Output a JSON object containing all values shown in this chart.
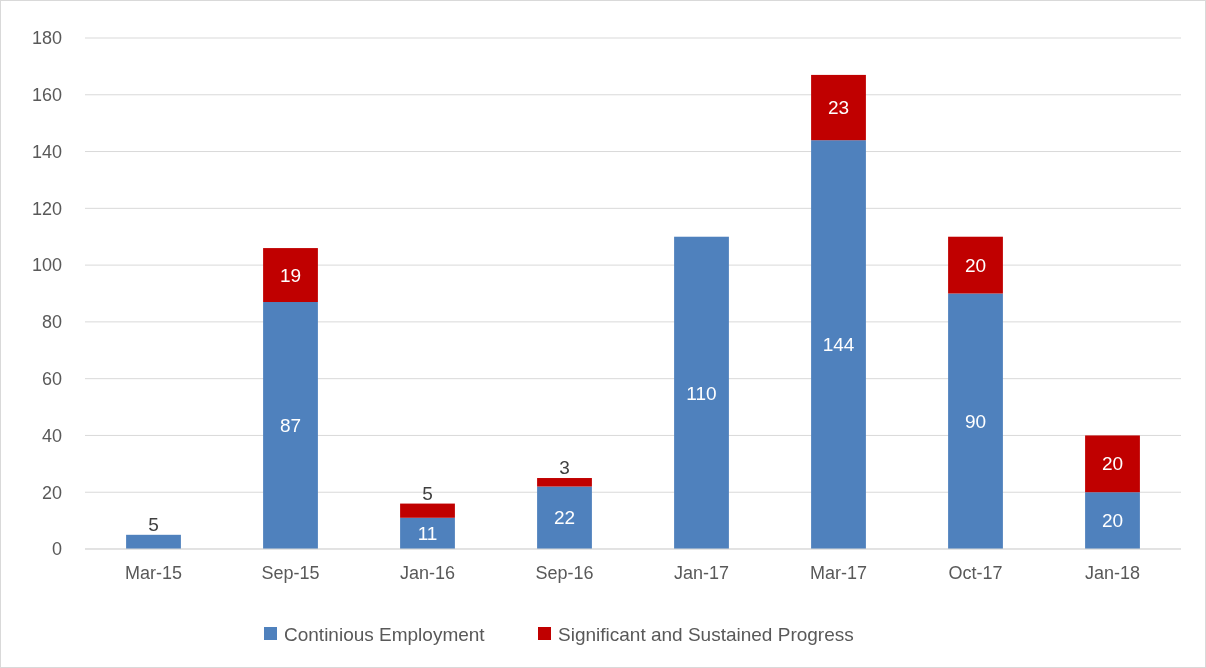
{
  "chart_data": {
    "type": "bar",
    "stacked": true,
    "categories": [
      "Mar-15",
      "Sep-15",
      "Jan-16",
      "Sep-16",
      "Jan-17",
      "Mar-17",
      "Oct-17",
      "Jan-18"
    ],
    "series": [
      {
        "name": "Continious Employment",
        "color": "#4f81bd",
        "values": [
          5,
          87,
          11,
          22,
          110,
          144,
          90,
          20
        ]
      },
      {
        "name": "Significant and Sustained Progress",
        "color": "#c00000",
        "values": [
          null,
          19,
          5,
          3,
          null,
          23,
          20,
          20
        ]
      }
    ],
    "ylim": [
      0,
      180
    ],
    "yticks": [
      0,
      20,
      40,
      60,
      80,
      100,
      120,
      140,
      160,
      180
    ],
    "grid": "y",
    "legend": "bottom",
    "data_labels": true
  }
}
